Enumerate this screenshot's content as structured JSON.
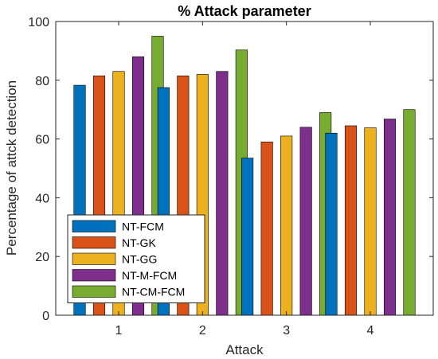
{
  "chart_data": {
    "type": "bar",
    "title": "% Attack parameter",
    "xlabel": "Attack",
    "ylabel": "Percentage of attck detection",
    "categories": [
      "1",
      "2",
      "3",
      "4"
    ],
    "ylim": [
      0,
      100
    ],
    "yticks": [
      0,
      20,
      40,
      60,
      80,
      100
    ],
    "grid": false,
    "legend_position": "bottom-left",
    "series": [
      {
        "name": "NT-FCM",
        "color": "#0072BD",
        "values": [
          78.3,
          77.5,
          53.5,
          62.0
        ]
      },
      {
        "name": "NT-GK",
        "color": "#D95319",
        "values": [
          81.5,
          81.5,
          59.0,
          64.5
        ]
      },
      {
        "name": "NT-GG",
        "color": "#EDB120",
        "values": [
          83.0,
          82.0,
          61.0,
          63.8
        ]
      },
      {
        "name": "NT-M-FCM",
        "color": "#7E2F8E",
        "values": [
          88.0,
          83.0,
          64.0,
          66.8
        ]
      },
      {
        "name": "NT-CM-FCM",
        "color": "#77AC30",
        "values": [
          95.0,
          90.3,
          69.0,
          70.0
        ]
      }
    ]
  }
}
